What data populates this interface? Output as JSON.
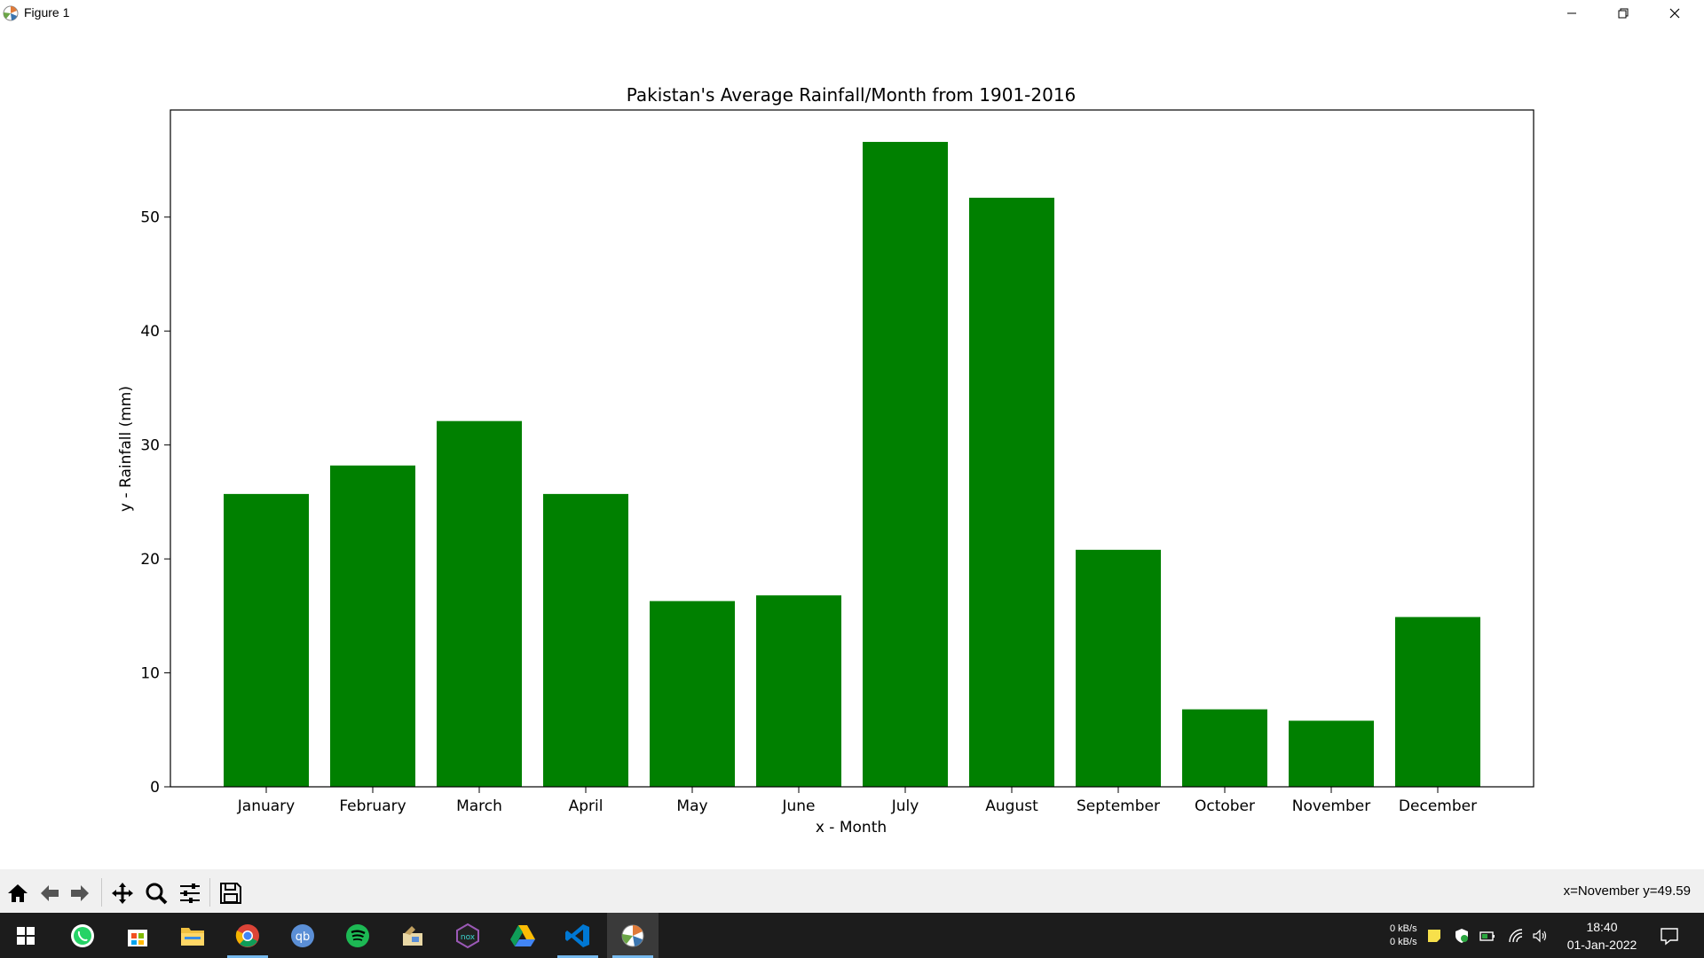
{
  "window": {
    "title": "Figure 1"
  },
  "chart_data": {
    "type": "bar",
    "title": "Pakistan's Average Rainfall/Month from 1901-2016",
    "xlabel": "x - Month",
    "ylabel": "y - Rainfall (mm)",
    "categories": [
      "January",
      "February",
      "March",
      "April",
      "May",
      "June",
      "July",
      "August",
      "September",
      "October",
      "November",
      "December"
    ],
    "values": [
      25.7,
      28.2,
      32.1,
      25.7,
      16.3,
      16.8,
      56.6,
      51.7,
      20.8,
      6.8,
      5.8,
      14.9
    ],
    "ylim": [
      0,
      59.4
    ],
    "yticks": [
      0,
      10,
      20,
      30,
      40,
      50
    ],
    "bar_color": "#008000",
    "grid": false,
    "legend": "none"
  },
  "toolbar": {
    "buttons": [
      "home-icon",
      "back-icon",
      "forward-icon",
      "pan-icon",
      "zoom-icon",
      "configure-subplots-icon",
      "save-icon"
    ],
    "coords": "x=November y=49.59"
  },
  "taskbar": {
    "apps": [
      "windows-start-icon",
      "whatsapp-icon",
      "store-icon",
      "file-explorer-icon",
      "chrome-icon",
      "qbittorrent-icon",
      "spotify-icon",
      "paint-icon",
      "nox-icon",
      "google-drive-icon",
      "vscode-icon",
      "matplotlib-figure-icon"
    ],
    "net_up": "0 kB/s",
    "net_down": "0 kB/s",
    "time": "18:40",
    "date": "01-Jan-2022"
  }
}
